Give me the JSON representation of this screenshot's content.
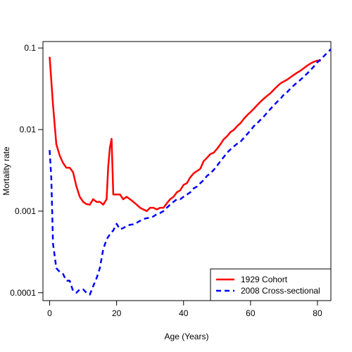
{
  "chart_data": {
    "type": "line",
    "title": "",
    "xlabel": "Age (Years)",
    "ylabel": "Mortality rate",
    "xlim": [
      -2,
      84
    ],
    "ylim": [
      8e-05,
      0.12
    ],
    "y_scale": "log",
    "x_ticks": [
      0,
      20,
      40,
      60,
      80
    ],
    "x_tick_labels": [
      "0",
      "20",
      "40",
      "60",
      "80"
    ],
    "y_ticks": [
      0.0001,
      0.001,
      0.01,
      0.1
    ],
    "y_tick_labels": [
      "0.0001",
      "0.001",
      "0.01",
      "0.1"
    ],
    "grid": false,
    "legend_position": "bottom-right",
    "series": [
      {
        "name": "1929 Cohort",
        "color": "#ff0000",
        "line_style": "solid",
        "points": [
          [
            0,
            0.078
          ],
          [
            1,
            0.02
          ],
          [
            2,
            0.0066
          ],
          [
            3,
            0.0048
          ],
          [
            4,
            0.0039
          ],
          [
            5,
            0.0034
          ],
          [
            6,
            0.0034
          ],
          [
            7,
            0.003
          ],
          [
            8,
            0.002
          ],
          [
            9,
            0.0015
          ],
          [
            10,
            0.0013
          ],
          [
            11,
            0.00122
          ],
          [
            12,
            0.0012
          ],
          [
            13,
            0.0014
          ],
          [
            14,
            0.0013
          ],
          [
            15,
            0.0013
          ],
          [
            16,
            0.0012
          ],
          [
            17,
            0.0014
          ],
          [
            17.5,
            0.0035
          ],
          [
            18,
            0.006
          ],
          [
            18.5,
            0.0077
          ],
          [
            19,
            0.0016
          ],
          [
            20,
            0.0016
          ],
          [
            21,
            0.0016
          ],
          [
            22,
            0.0014
          ],
          [
            23,
            0.0015
          ],
          [
            24,
            0.0014
          ],
          [
            25,
            0.0013
          ],
          [
            26,
            0.0012
          ],
          [
            27,
            0.0011
          ],
          [
            28,
            0.00105
          ],
          [
            29,
            0.001
          ],
          [
            30,
            0.0011
          ],
          [
            31,
            0.0011
          ],
          [
            32,
            0.00105
          ],
          [
            33,
            0.0011
          ],
          [
            34,
            0.0011
          ],
          [
            35,
            0.00125
          ],
          [
            36,
            0.0014
          ],
          [
            37,
            0.0015
          ],
          [
            38,
            0.0017
          ],
          [
            39,
            0.0018
          ],
          [
            40,
            0.0021
          ],
          [
            41,
            0.0022
          ],
          [
            42,
            0.0026
          ],
          [
            43,
            0.0029
          ],
          [
            44,
            0.0031
          ],
          [
            45,
            0.0033
          ],
          [
            46,
            0.0041
          ],
          [
            47,
            0.0045
          ],
          [
            48,
            0.005
          ],
          [
            49,
            0.0052
          ],
          [
            50,
            0.0058
          ],
          [
            51,
            0.0066
          ],
          [
            52,
            0.0076
          ],
          [
            53,
            0.0083
          ],
          [
            54,
            0.0093
          ],
          [
            55,
            0.0099
          ],
          [
            56,
            0.011
          ],
          [
            57,
            0.012
          ],
          [
            58,
            0.0135
          ],
          [
            59,
            0.015
          ],
          [
            60,
            0.0164
          ],
          [
            61,
            0.018
          ],
          [
            62,
            0.02
          ],
          [
            63,
            0.022
          ],
          [
            64,
            0.024
          ],
          [
            65,
            0.026
          ],
          [
            66,
            0.028
          ],
          [
            67,
            0.031
          ],
          [
            68,
            0.034
          ],
          [
            69,
            0.037
          ],
          [
            70,
            0.039
          ],
          [
            71,
            0.041
          ],
          [
            72,
            0.044
          ],
          [
            73,
            0.047
          ],
          [
            74,
            0.05
          ],
          [
            75,
            0.053
          ],
          [
            76,
            0.057
          ],
          [
            77,
            0.061
          ],
          [
            78,
            0.065
          ],
          [
            79,
            0.068
          ],
          [
            80,
            0.07
          ],
          [
            81,
            0.07
          ]
        ]
      },
      {
        "name": "2008 Cross-sectional",
        "color": "#0000ff",
        "line_style": "dashed",
        "points": [
          [
            0,
            0.0056
          ],
          [
            0.5,
            0.0025
          ],
          [
            1,
            0.0004
          ],
          [
            2,
            0.0002
          ],
          [
            3,
            0.00018
          ],
          [
            4,
            0.00017
          ],
          [
            5,
            0.00014
          ],
          [
            6,
            0.00014
          ],
          [
            7,
            0.000105
          ],
          [
            8,
            0.0001
          ],
          [
            9,
            0.00011
          ],
          [
            10,
            0.00011
          ],
          [
            11,
            0.0001
          ],
          [
            12,
            9.5e-05
          ],
          [
            13,
            0.00012
          ],
          [
            14,
            0.00015
          ],
          [
            15,
            0.0002
          ],
          [
            16,
            0.00034
          ],
          [
            17,
            0.00045
          ],
          [
            18,
            0.00052
          ],
          [
            19,
            0.00058
          ],
          [
            20,
            0.0007
          ],
          [
            21,
            0.0006
          ],
          [
            22,
            0.00062
          ],
          [
            23,
            0.00066
          ],
          [
            24,
            0.00068
          ],
          [
            25,
            0.00069
          ],
          [
            26,
            0.00072
          ],
          [
            27,
            0.00076
          ],
          [
            28,
            0.0008
          ],
          [
            29,
            0.00082
          ],
          [
            30,
            0.00083
          ],
          [
            31,
            0.00086
          ],
          [
            32,
            0.00092
          ],
          [
            33,
            0.00095
          ],
          [
            34,
            0.001
          ],
          [
            35,
            0.0011
          ],
          [
            36,
            0.0012
          ],
          [
            37,
            0.0013
          ],
          [
            38,
            0.0014
          ],
          [
            39,
            0.0014
          ],
          [
            40,
            0.0015
          ],
          [
            41,
            0.0016
          ],
          [
            42,
            0.0017
          ],
          [
            43,
            0.0019
          ],
          [
            44,
            0.002
          ],
          [
            45,
            0.0022
          ],
          [
            46,
            0.0024
          ],
          [
            47,
            0.0027
          ],
          [
            48,
            0.0029
          ],
          [
            49,
            0.0032
          ],
          [
            50,
            0.0036
          ],
          [
            51,
            0.0041
          ],
          [
            52,
            0.0046
          ],
          [
            53,
            0.0052
          ],
          [
            54,
            0.0057
          ],
          [
            55,
            0.0062
          ],
          [
            56,
            0.0067
          ],
          [
            57,
            0.0071
          ],
          [
            58,
            0.0079
          ],
          [
            59,
            0.0088
          ],
          [
            60,
            0.0098
          ],
          [
            61,
            0.011
          ],
          [
            62,
            0.012
          ],
          [
            63,
            0.0132
          ],
          [
            64,
            0.0145
          ],
          [
            65,
            0.0162
          ],
          [
            66,
            0.018
          ],
          [
            67,
            0.02
          ],
          [
            68,
            0.022
          ],
          [
            69,
            0.024
          ],
          [
            70,
            0.027
          ],
          [
            71,
            0.029
          ],
          [
            72,
            0.032
          ],
          [
            73,
            0.035
          ],
          [
            74,
            0.038
          ],
          [
            75,
            0.041
          ],
          [
            76,
            0.045
          ],
          [
            77,
            0.049
          ],
          [
            78,
            0.054
          ],
          [
            79,
            0.06
          ],
          [
            80,
            0.067
          ],
          [
            81,
            0.073
          ],
          [
            82,
            0.08
          ],
          [
            83,
            0.088
          ],
          [
            84,
            0.097
          ]
        ]
      }
    ]
  }
}
